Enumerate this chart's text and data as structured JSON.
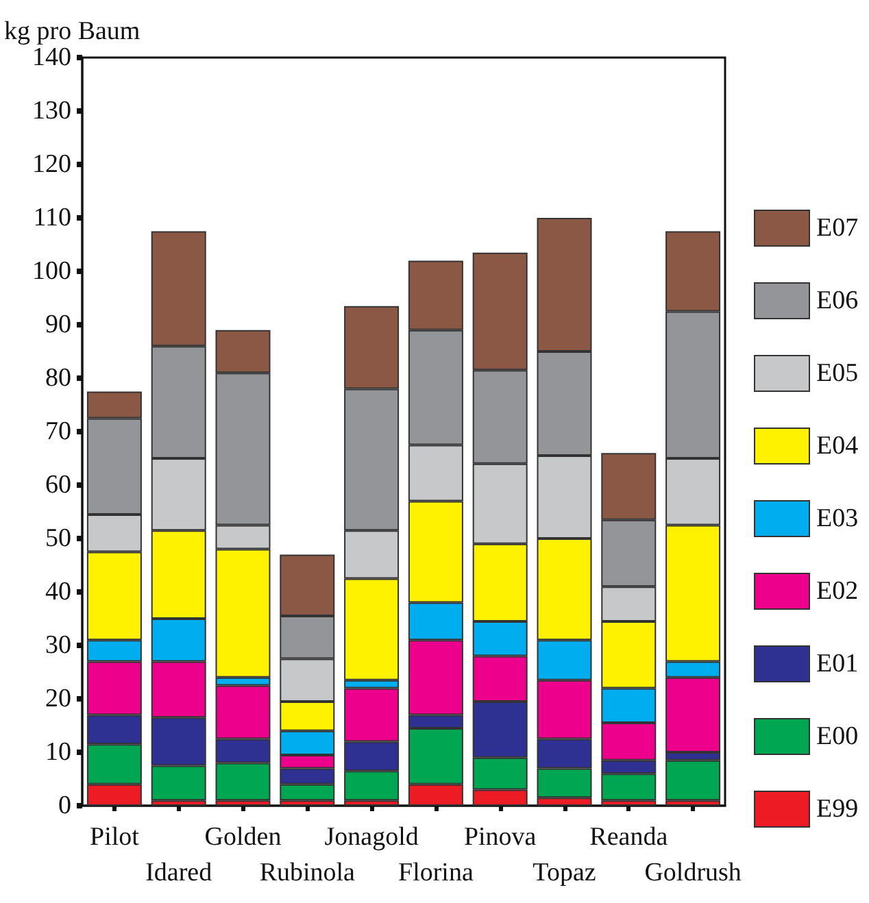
{
  "chart_data": {
    "type": "bar",
    "stacked": true,
    "ylabel": "kg pro Baum",
    "categories": [
      "Pilot",
      "Idared",
      "Golden",
      "Rubinola",
      "Jonagold",
      "Florina",
      "Pinova",
      "Topaz",
      "Reanda",
      "Goldrush"
    ],
    "series": [
      {
        "name": "E99",
        "color": "#ed1c24",
        "values": [
          4,
          1,
          1,
          1,
          1,
          4,
          3,
          1.5,
          1,
          1
        ]
      },
      {
        "name": "E00",
        "color": "#00a651",
        "values": [
          7.5,
          6.5,
          7,
          3,
          5.5,
          10.5,
          6,
          5.5,
          5,
          7.5
        ]
      },
      {
        "name": "E01",
        "color": "#2e3192",
        "values": [
          5.5,
          9,
          4.5,
          3,
          5.5,
          2.5,
          10.5,
          5.5,
          2.5,
          1.5
        ]
      },
      {
        "name": "E02",
        "color": "#ec008c",
        "values": [
          10,
          10.5,
          10,
          2.5,
          10,
          14,
          8.5,
          11,
          7,
          14
        ]
      },
      {
        "name": "E03",
        "color": "#00aeef",
        "values": [
          4,
          8,
          1.5,
          4.5,
          1.5,
          7,
          6.5,
          7.5,
          6.5,
          3
        ]
      },
      {
        "name": "E04",
        "color": "#fff200",
        "values": [
          16.5,
          16.5,
          24,
          5.5,
          19,
          19,
          14.5,
          19,
          12.5,
          25.5
        ]
      },
      {
        "name": "E05",
        "color": "#c7c8ca",
        "values": [
          7,
          13.5,
          4.5,
          8,
          9,
          10.5,
          15,
          15.5,
          6.5,
          12.5
        ]
      },
      {
        "name": "E06",
        "color": "#939598",
        "values": [
          18,
          21,
          28.5,
          8,
          26.5,
          21.5,
          17.5,
          19.5,
          12.5,
          27.5
        ]
      },
      {
        "name": "E07",
        "color": "#8c5846",
        "values": [
          5,
          21.5,
          8,
          11.5,
          15.5,
          13,
          22,
          25,
          12.5,
          15
        ]
      }
    ],
    "ylim": [
      0,
      140
    ],
    "yticks": [
      0,
      10,
      20,
      30,
      40,
      50,
      60,
      70,
      80,
      90,
      100,
      110,
      120,
      130,
      140
    ],
    "grid": false,
    "legend": "right"
  }
}
